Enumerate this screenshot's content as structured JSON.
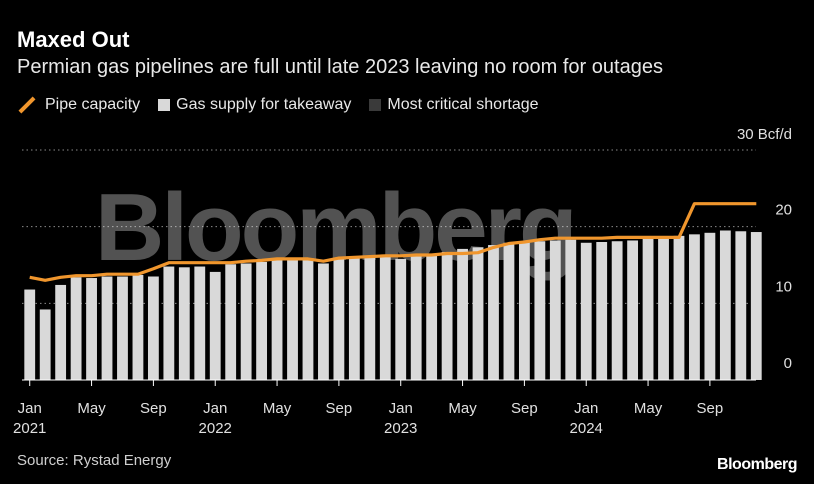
{
  "header": {
    "title": "Maxed Out",
    "subtitle": "Permian gas pipelines are full until late 2023 leaving no room for outages"
  },
  "legend": {
    "pipe_capacity": "Pipe capacity",
    "gas_supply": "Gas supply for takeaway",
    "shortage": "Most critical shortage"
  },
  "footer": {
    "source": "Source: Rystad Energy",
    "brand": "Bloomberg"
  },
  "watermark": "Bloomberg",
  "colors": {
    "background": "#000000",
    "pipe_capacity": "#f0962d",
    "gas_supply": "#d9d9d9",
    "shortage": "#3a3a3a"
  },
  "chart_data": {
    "type": "bar",
    "ylabel": "",
    "yunit": "Bcf/d",
    "ylim": [
      0,
      30
    ],
    "yticks": [
      {
        "value": 30,
        "label": "30 Bcf/d"
      },
      {
        "value": 20,
        "label": "20"
      },
      {
        "value": 10,
        "label": "10"
      },
      {
        "value": 0,
        "label": "0"
      }
    ],
    "grid": "dotted horizontal",
    "legend_position": "top-left",
    "months": [
      "2021-01",
      "2021-02",
      "2021-03",
      "2021-04",
      "2021-05",
      "2021-06",
      "2021-07",
      "2021-08",
      "2021-09",
      "2021-10",
      "2021-11",
      "2021-12",
      "2022-01",
      "2022-02",
      "2022-03",
      "2022-04",
      "2022-05",
      "2022-06",
      "2022-07",
      "2022-08",
      "2022-09",
      "2022-10",
      "2022-11",
      "2022-12",
      "2023-01",
      "2023-02",
      "2023-03",
      "2023-04",
      "2023-05",
      "2023-06",
      "2023-07",
      "2023-08",
      "2023-09",
      "2023-10",
      "2023-11",
      "2023-12",
      "2024-01",
      "2024-02",
      "2024-03",
      "2024-04",
      "2024-05",
      "2024-06",
      "2024-07",
      "2024-08",
      "2024-09",
      "2024-10",
      "2024-11",
      "2024-12"
    ],
    "x_tick_labels": [
      {
        "index": 0,
        "month": "Jan",
        "year": "2021"
      },
      {
        "index": 4,
        "month": "May",
        "year": ""
      },
      {
        "index": 8,
        "month": "Sep",
        "year": ""
      },
      {
        "index": 12,
        "month": "Jan",
        "year": "2022"
      },
      {
        "index": 16,
        "month": "May",
        "year": ""
      },
      {
        "index": 20,
        "month": "Sep",
        "year": ""
      },
      {
        "index": 24,
        "month": "Jan",
        "year": "2023"
      },
      {
        "index": 28,
        "month": "May",
        "year": ""
      },
      {
        "index": 32,
        "month": "Sep",
        "year": ""
      },
      {
        "index": 36,
        "month": "Jan",
        "year": "2024"
      },
      {
        "index": 40,
        "month": "May",
        "year": ""
      },
      {
        "index": 44,
        "month": "Sep",
        "year": ""
      }
    ],
    "series": [
      {
        "name": "Gas supply for takeaway",
        "type": "bar",
        "values": [
          11.8,
          9.2,
          12.4,
          13.4,
          13.3,
          13.5,
          13.5,
          13.7,
          13.5,
          14.8,
          14.7,
          14.8,
          14.1,
          15.1,
          15.2,
          15.4,
          15.6,
          15.7,
          15.9,
          15.2,
          15.9,
          16.0,
          16.1,
          16.2,
          15.8,
          16.4,
          16.5,
          16.7,
          17.1,
          17.3,
          17.6,
          17.9,
          18.0,
          18.1,
          18.2,
          18.3,
          17.9,
          18.0,
          18.1,
          18.2,
          18.4,
          18.5,
          18.8,
          19.0,
          19.2,
          19.5,
          19.4,
          19.3
        ]
      },
      {
        "name": "Most critical shortage",
        "type": "bar",
        "values": [
          0,
          0,
          0,
          0,
          0,
          0,
          0,
          0,
          0,
          0,
          0,
          0,
          0,
          0,
          0,
          0,
          0,
          0,
          0,
          0,
          0,
          0,
          0,
          0,
          0,
          0,
          0,
          0,
          0,
          0,
          0,
          0,
          0,
          0,
          0,
          0,
          0,
          0,
          0,
          0,
          0,
          0,
          0,
          0,
          0,
          0,
          0,
          0
        ]
      },
      {
        "name": "Pipe capacity",
        "type": "line",
        "values": [
          13.4,
          13.0,
          13.4,
          13.6,
          13.6,
          13.8,
          13.8,
          13.8,
          14.5,
          15.3,
          15.3,
          15.3,
          15.3,
          15.3,
          15.5,
          15.6,
          15.8,
          15.8,
          15.8,
          15.5,
          15.9,
          16.0,
          16.1,
          16.2,
          16.2,
          16.3,
          16.3,
          16.5,
          16.5,
          16.6,
          17.3,
          17.8,
          18.0,
          18.3,
          18.5,
          18.5,
          18.5,
          18.5,
          18.6,
          18.6,
          18.6,
          18.6,
          18.6,
          23.0,
          23.0,
          23.0,
          23.0,
          23.0
        ]
      }
    ]
  }
}
